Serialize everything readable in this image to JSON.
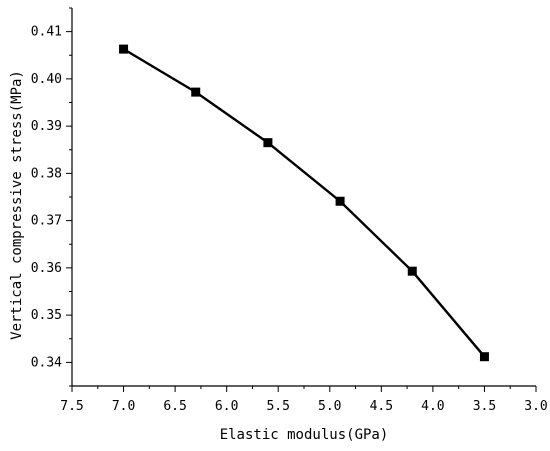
{
  "chart_data": {
    "type": "line",
    "title": "",
    "xlabel": "Elastic modulus(GPa)",
    "ylabel": "Vertical compressive stress(MPa)",
    "xlim": [
      7.5,
      3.0
    ],
    "ylim": [
      0.335,
      0.415
    ],
    "x_reversed": true,
    "x_ticks": [
      "7.5",
      "7.0",
      "6.5",
      "6.0",
      "5.5",
      "5.0",
      "4.5",
      "4.0",
      "3.5",
      "3.0"
    ],
    "y_ticks": [
      "0.34",
      "0.35",
      "0.36",
      "0.37",
      "0.38",
      "0.39",
      "0.40",
      "0.41"
    ],
    "grid": false,
    "marker": "square",
    "color": "#000000",
    "series": [
      {
        "x": [
          7.0,
          6.3,
          5.6,
          4.9,
          4.2,
          3.5
        ],
        "y": [
          0.4063,
          0.3972,
          0.3865,
          0.3741,
          0.3593,
          0.3412
        ]
      }
    ]
  }
}
